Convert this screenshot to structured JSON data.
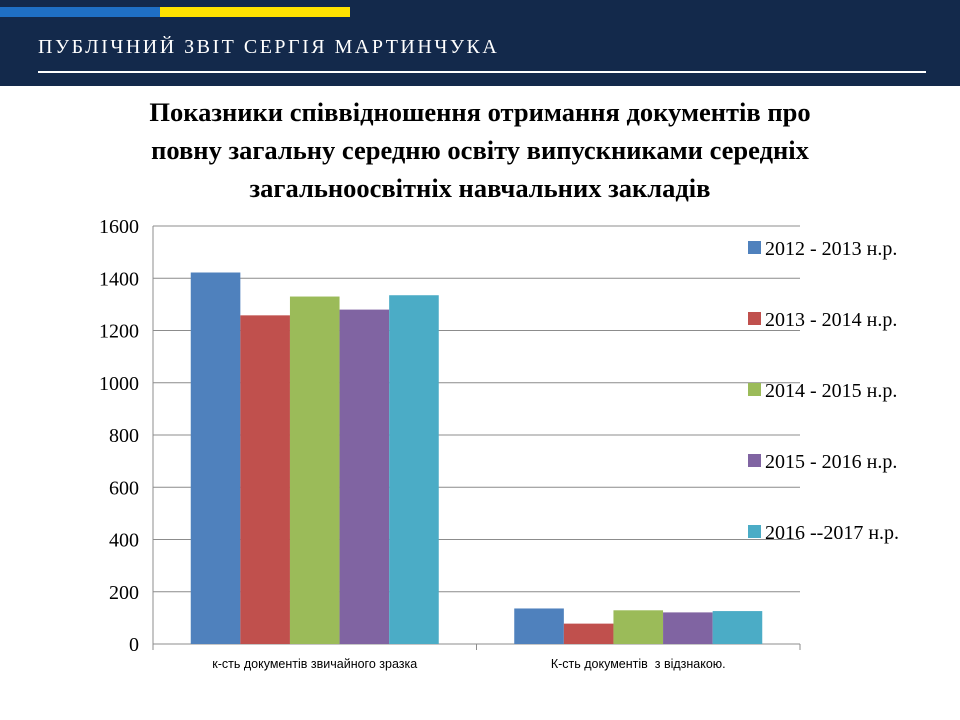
{
  "header": {
    "title": "ПУБЛІЧНИЙ ЗВІТ СЕРГІЯ МАРТИНЧУКА"
  },
  "colors": {
    "header_bg": "#13294b",
    "stripe_blue": "#1f6fc4",
    "stripe_yellow": "#ffe200"
  },
  "chart_data": {
    "type": "bar",
    "title_lines": [
      "Показники співвідношення отримання документів про",
      "повну загальну середню освіту випускниками середніх",
      "загальноосвітніх навчальних закладів"
    ],
    "categories": [
      "к-сть документів звичайного зразка",
      "К-сть документів  з відзнакою."
    ],
    "ylim": [
      0,
      1600
    ],
    "yticks": [
      0,
      200,
      400,
      600,
      800,
      1000,
      1200,
      1400,
      1600
    ],
    "grid": true,
    "legend": "right",
    "series": [
      {
        "name": "2012 - 2013 н.р.",
        "color": "#4f81bd",
        "values": [
          1422,
          136
        ]
      },
      {
        "name": "2013 - 2014 н.р.",
        "color": "#c0504d",
        "values": [
          1258,
          78
        ]
      },
      {
        "name": "2014 - 2015 н.р.",
        "color": "#9bbb59",
        "values": [
          1330,
          129
        ]
      },
      {
        "name": "2015 - 2016 н.р.",
        "color": "#8064a2",
        "values": [
          1280,
          121
        ]
      },
      {
        "name": "2016 --2017 н.р.",
        "color": "#4bacc6",
        "values": [
          1335,
          126
        ]
      }
    ]
  }
}
